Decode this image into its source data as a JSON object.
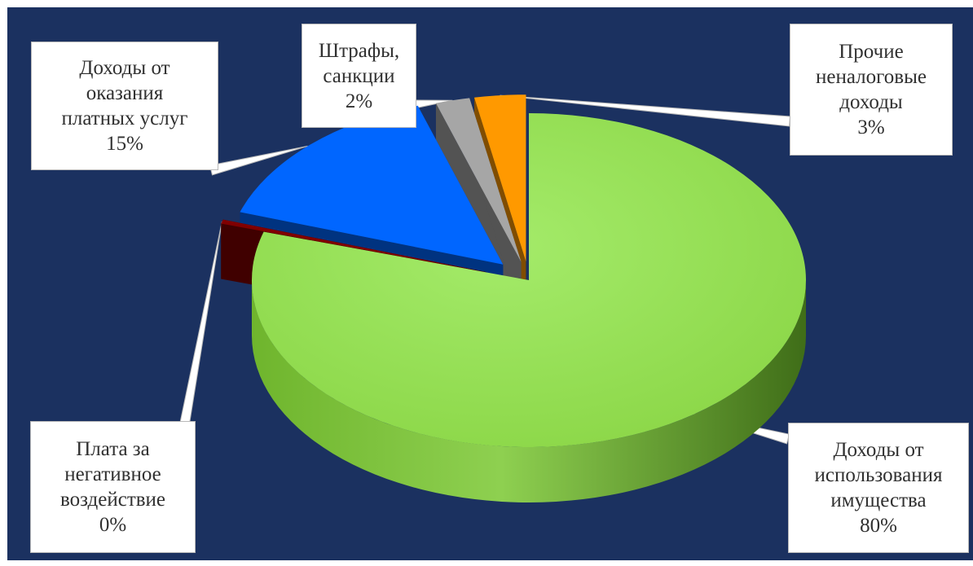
{
  "chart_data": {
    "type": "pie",
    "style": "3d-exploded",
    "background": "#1b3160",
    "slices": [
      {
        "label": "Доходы от\nиспользования\nимущества",
        "percent_label": "80%",
        "value": 80,
        "color": "#92d050"
      },
      {
        "label": "Плата за\nнегативное\nвоздействие",
        "percent_label": "0%",
        "value": 0.4,
        "color": "#800000"
      },
      {
        "label": "Доходы от\nоказания\nплатных услуг",
        "percent_label": "15%",
        "value": 15,
        "color": "#0066ff"
      },
      {
        "label": "Штрафы,\nсанкции",
        "percent_label": "2%",
        "value": 2,
        "color": "#a6a6a6"
      },
      {
        "label": "Прочие\nненалоговые\nдоходы",
        "percent_label": "3%",
        "value": 3,
        "color": "#ff9900"
      }
    ]
  }
}
